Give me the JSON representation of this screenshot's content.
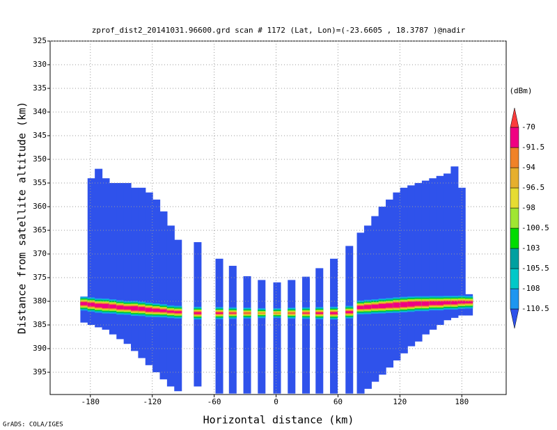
{
  "chart_data": {
    "type": "profile",
    "title": "zprof_dist2_20141031.96600.grd  scan # 1172  (Lat, Lon)=(-23.6605 , 18.3787 )@nadir",
    "xlabel": "Horizontal distance (km)",
    "ylabel": "Distance from satellite altitude (km)",
    "footer": "GrADS: COLA/IGES",
    "colorbar_label": "(dBm)",
    "xlim": [
      -219,
      223
    ],
    "ylim": [
      399.7,
      325
    ],
    "xticks": [
      -180,
      -120,
      -60,
      0,
      60,
      120,
      180
    ],
    "yticks": [
      325,
      330,
      335,
      340,
      345,
      350,
      355,
      360,
      365,
      370,
      375,
      380,
      385,
      390,
      395
    ],
    "grid": true,
    "levels": [
      -110.5,
      -108,
      -105.5,
      -103,
      -100.5,
      -98,
      -96.5,
      -94,
      -91.5,
      -70
    ],
    "colors": [
      "#2f52eb",
      "#1e96f0",
      "#00c8c8",
      "#00a0a0",
      "#00dc00",
      "#a0e632",
      "#e6dc32",
      "#e6af2d",
      "#f08228",
      "#f00082",
      "#fa3c3c"
    ],
    "background_value": -112,
    "columns": {
      "x": [
        -186,
        -179,
        -172,
        -165,
        -158,
        -151,
        -144,
        -137,
        -130,
        -123,
        -116,
        -109,
        -102,
        -95,
        -76,
        -55,
        -42,
        -28,
        -14,
        1,
        15,
        29,
        42,
        56,
        71,
        82,
        89,
        96,
        103,
        110,
        117,
        124,
        131,
        138,
        145,
        152,
        159,
        166,
        173,
        180,
        187
      ],
      "top": [
        379,
        354,
        352,
        354,
        355,
        355,
        355,
        356,
        356,
        357,
        358.5,
        361,
        364,
        367,
        367.5,
        371,
        372.5,
        374.7,
        375.5,
        376,
        375.5,
        374.8,
        373,
        371,
        368.3,
        365.5,
        364,
        362,
        360,
        358.5,
        357,
        356,
        355.5,
        355,
        354.5,
        354,
        353.5,
        353,
        351.5,
        356,
        378.5
      ],
      "bottom": [
        384.5,
        385,
        385.5,
        386,
        387,
        388,
        389,
        390.5,
        392,
        393.5,
        395,
        396.5,
        398,
        399,
        398,
        399.5,
        399.5,
        399.5,
        399.5,
        399.5,
        399.5,
        399.5,
        399.5,
        399.5,
        399.5,
        399.5,
        398.5,
        397,
        395.5,
        394,
        392.5,
        391,
        389.5,
        388.5,
        387,
        386,
        385,
        384,
        383.5,
        383,
        383
      ],
      "layer_alt": [
        380.5,
        380.7,
        380.9,
        381,
        381.1,
        381.3,
        381.4,
        381.5,
        381.6,
        381.8,
        381.9,
        382,
        382.2,
        382.3,
        382.5,
        382.5,
        382.5,
        382.5,
        382.5,
        382.5,
        382.5,
        382.5,
        382.5,
        382.5,
        382.3,
        381.3,
        381.2,
        381.1,
        381,
        380.9,
        380.8,
        380.7,
        380.6,
        380.5,
        380.5,
        380.4,
        380.4,
        380.3,
        380.3,
        380.2,
        380.2
      ],
      "layer_peak": [
        -86,
        -85,
        -85,
        -84,
        -85,
        -85,
        -86,
        -84,
        -85,
        -85,
        -86,
        -87,
        -88,
        -88,
        -88,
        -89,
        -90,
        -91,
        -93,
        -93,
        -91,
        -90,
        -89,
        -88,
        -88,
        -86,
        -85,
        -85,
        -84,
        -84,
        -83,
        -83,
        -83,
        -84,
        -84,
        -85,
        -85,
        -86,
        -86,
        -87,
        -88
      ]
    }
  }
}
